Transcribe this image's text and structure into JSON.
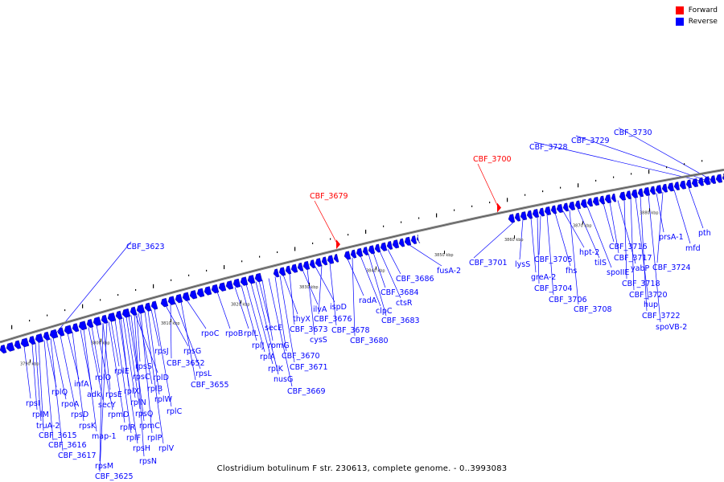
{
  "legend": {
    "items": [
      {
        "label": "Forward",
        "color": "#ff0000"
      },
      {
        "label": "Reverse",
        "color": "#0000ff"
      }
    ]
  },
  "caption": "Clostridium botulinum F str. 230613, complete genome. - 0..3993083",
  "colors": {
    "forward": "#ff0000",
    "reverse": "#0000ff",
    "backbone": "#888888"
  },
  "ticks": [
    "3790 kbp",
    "3800 kbp",
    "3810 kbp",
    "3820 kbp",
    "3830 kbp",
    "3840 kbp",
    "3850 kbp",
    "3860 kbp",
    "3870 kbp",
    "3880 kbp"
  ],
  "forward_genes": [
    "CBF_3679",
    "CBF_3700"
  ],
  "reverse_genes": [
    "rpsI",
    "rplM",
    "truA-2",
    "CBF_3615",
    "CBF_3616",
    "CBF_3617",
    "rplQ",
    "rpoA",
    "rpsD",
    "infA",
    "rpsK",
    "adk",
    "secY",
    "map-1",
    "rplO",
    "rpmD",
    "rpsM",
    "CBF_3625",
    "rpsE",
    "rplR",
    "rplE",
    "rplF",
    "rpsH",
    "rplX",
    "rplN",
    "rpsQ",
    "rpsC",
    "rplD",
    "rpmC",
    "rplB",
    "rpsN",
    "rplP",
    "rpsS",
    "rplV",
    "rplW",
    "rpsJ",
    "rplC",
    "rpsG",
    "CBF_3652",
    "rpsL",
    "CBF_3655",
    "rpoC",
    "CBF_3623",
    "rpoB",
    "rplL",
    "rplJ",
    "rplA",
    "rplK",
    "nusG",
    "secE",
    "rpmG",
    "CBF_3669",
    "CBF_3670",
    "CBF_3671",
    "thyX",
    "CBF_3673",
    "ilvA",
    "cysS",
    "ispD",
    "CBF_3676",
    "CBF_3678",
    "radA",
    "CBF_3680",
    "clpC",
    "CBF_3683",
    "CBF_3684",
    "ctsR",
    "CBF_3686",
    "fusA-2",
    "CBF_3701",
    "lysS",
    "greA-2",
    "CBF_3704",
    "CBF_3705",
    "CBF_3706",
    "fhs",
    "hpt-2",
    "CBF_3708",
    "tilS",
    "spoIIE",
    "CBF_3716",
    "CBF_3717",
    "yabP",
    "CBF_3718",
    "CBF_3720",
    "hup",
    "CBF_3722",
    "spoVB-2",
    "prsA-1",
    "CBF_3724",
    "mfd",
    "pth",
    "CBF_3728",
    "CBF_3729",
    "CBF_3730"
  ]
}
